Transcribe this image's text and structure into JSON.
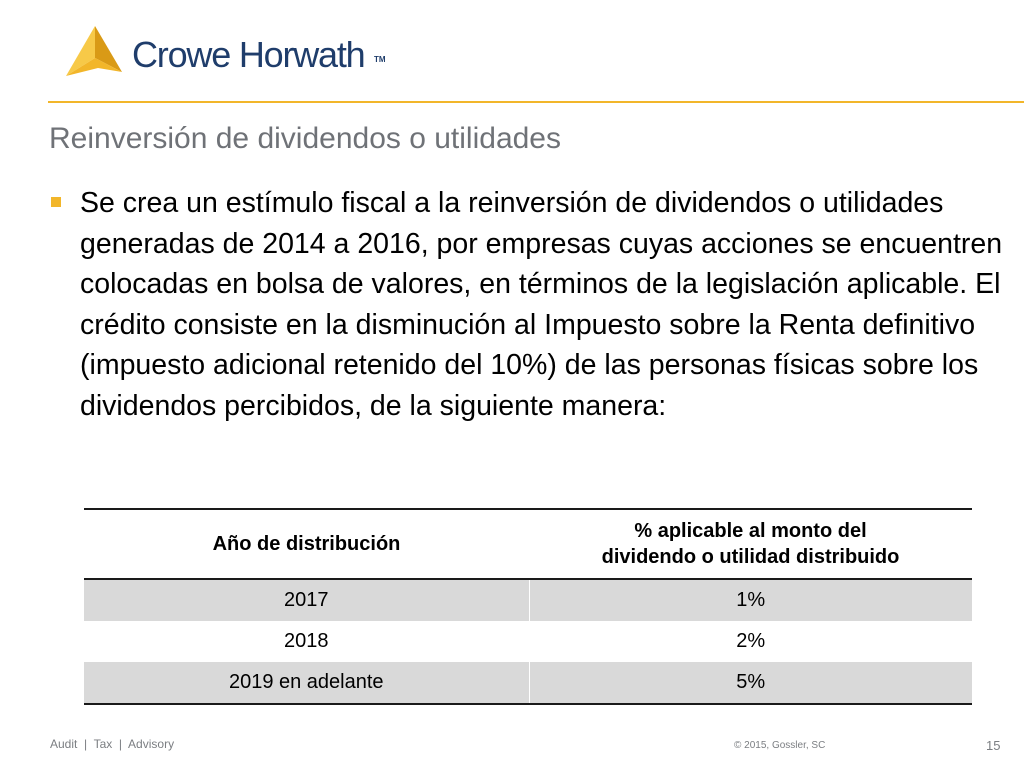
{
  "logo": {
    "brand_text": "Crowe Horwath",
    "tm_text": "TM",
    "icon": "crowe-triangle-icon",
    "colors": {
      "icon": "#f2b62a",
      "text": "#1f3d6b"
    }
  },
  "slide": {
    "title": "Reinversión de dividendos o utilidades",
    "bullet_text": "Se crea un estímulo fiscal a la reinversión de dividendos o utilidades generadas de 2014 a 2016, por empresas cuyas acciones se encuentren colocadas en bolsa de valores, en términos de la legislación aplicable. El crédito consiste en la disminución  al Impuesto sobre la Renta definitivo (impuesto adicional retenido del 10%) de las personas físicas sobre los dividendos percibidos, de la siguiente manera:"
  },
  "table": {
    "headers": {
      "col1": "Año de distribución",
      "col2_line1": "% aplicable al monto del",
      "col2_line2": "dividendo o utilidad distribuido"
    },
    "rows": [
      {
        "year": "2017",
        "percent": "1%"
      },
      {
        "year": "2018",
        "percent": "2%"
      },
      {
        "year": "2019 en adelante",
        "percent": "5%"
      }
    ]
  },
  "footer": {
    "services": "Audit  |  Tax  |  Advisory",
    "copyright": "© 2015, Gossler, SC",
    "page_number": "15"
  },
  "colors": {
    "accent": "#f2b62a",
    "title": "#6f7277",
    "row_shade": "#d9d9d9"
  }
}
